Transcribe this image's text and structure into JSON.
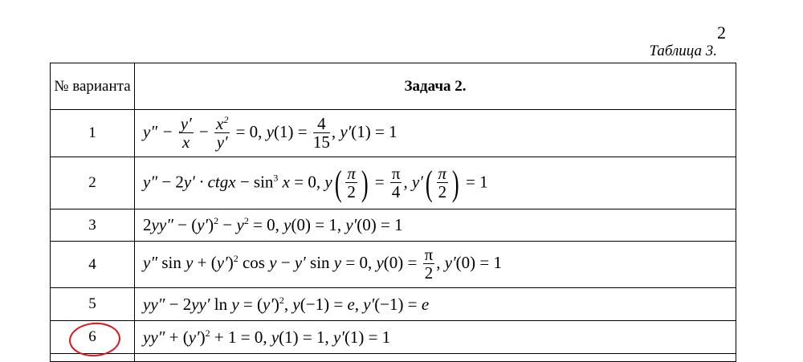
{
  "page_number": "2",
  "table_caption": "Таблица 3.",
  "header": {
    "col1": "№ варианта",
    "col2": "Задача 2."
  },
  "highlight_color": "#e0161c",
  "highlighted_variant": "6",
  "rows": [
    {
      "n": "1",
      "f": [
        {
          "k": "i",
          "v": "y″ − "
        },
        {
          "k": "frac",
          "n": "y′",
          "d": "x",
          "it": true
        },
        {
          "k": "r",
          "v": " − "
        },
        {
          "k": "fracsup",
          "n": "x",
          "s": "2",
          "d": "y′"
        },
        {
          "k": "r",
          "v": " = 0,  "
        },
        {
          "k": "i",
          "v": "y"
        },
        {
          "k": "r",
          "v": "(1) = "
        },
        {
          "k": "frac",
          "n": "4",
          "d": "15"
        },
        {
          "k": "r",
          "v": ",  "
        },
        {
          "k": "i",
          "v": "y′"
        },
        {
          "k": "r",
          "v": "(1) = 1"
        }
      ]
    },
    {
      "n": "2",
      "f": [
        {
          "k": "i",
          "v": "y″"
        },
        {
          "k": "r",
          "v": " − 2"
        },
        {
          "k": "i",
          "v": "y′ · ctgx"
        },
        {
          "k": "r",
          "v": " − sin"
        },
        {
          "k": "sup",
          "v": "3"
        },
        {
          "k": "i",
          "v": " x"
        },
        {
          "k": "r",
          "v": " = 0,  "
        },
        {
          "k": "i",
          "v": "y"
        },
        {
          "k": "pfrac",
          "n": "π",
          "d": "2"
        },
        {
          "k": "r",
          "v": " = "
        },
        {
          "k": "frac",
          "n": "π",
          "d": "4"
        },
        {
          "k": "r",
          "v": ",  "
        },
        {
          "k": "i",
          "v": "y′"
        },
        {
          "k": "pfrac",
          "n": "π",
          "d": "2"
        },
        {
          "k": "r",
          "v": " = 1"
        }
      ]
    },
    {
      "n": "3",
      "f": [
        {
          "k": "r",
          "v": "2"
        },
        {
          "k": "i",
          "v": "yy″"
        },
        {
          "k": "r",
          "v": " − ("
        },
        {
          "k": "i",
          "v": "y′"
        },
        {
          "k": "r",
          "v": ")"
        },
        {
          "k": "sup",
          "v": "2"
        },
        {
          "k": "r",
          "v": " − "
        },
        {
          "k": "i",
          "v": "y"
        },
        {
          "k": "sup",
          "v": "2"
        },
        {
          "k": "r",
          "v": " = 0,  "
        },
        {
          "k": "i",
          "v": "y"
        },
        {
          "k": "r",
          "v": "(0) = 1,  "
        },
        {
          "k": "i",
          "v": "y′"
        },
        {
          "k": "r",
          "v": "(0) = 1"
        }
      ]
    },
    {
      "n": "4",
      "f": [
        {
          "k": "i",
          "v": "y″"
        },
        {
          "k": "r",
          "v": " sin "
        },
        {
          "k": "i",
          "v": "y"
        },
        {
          "k": "r",
          "v": " + ("
        },
        {
          "k": "i",
          "v": "y′"
        },
        {
          "k": "r",
          "v": ")"
        },
        {
          "k": "sup",
          "v": "2"
        },
        {
          "k": "r",
          "v": " cos "
        },
        {
          "k": "i",
          "v": "y"
        },
        {
          "k": "r",
          "v": " − "
        },
        {
          "k": "i",
          "v": "y′"
        },
        {
          "k": "r",
          "v": " sin "
        },
        {
          "k": "i",
          "v": "y"
        },
        {
          "k": "r",
          "v": " = 0,  "
        },
        {
          "k": "i",
          "v": "y"
        },
        {
          "k": "r",
          "v": "(0) = "
        },
        {
          "k": "frac",
          "n": "π",
          "d": "2"
        },
        {
          "k": "r",
          "v": ",  "
        },
        {
          "k": "i",
          "v": "y′"
        },
        {
          "k": "r",
          "v": "(0) = 1"
        }
      ]
    },
    {
      "n": "5",
      "f": [
        {
          "k": "i",
          "v": "yy″"
        },
        {
          "k": "r",
          "v": " − 2"
        },
        {
          "k": "i",
          "v": "yy′"
        },
        {
          "k": "r",
          "v": " ln "
        },
        {
          "k": "i",
          "v": "y"
        },
        {
          "k": "r",
          "v": " = ("
        },
        {
          "k": "i",
          "v": "y′"
        },
        {
          "k": "r",
          "v": ")"
        },
        {
          "k": "sup",
          "v": "2"
        },
        {
          "k": "r",
          "v": ",  "
        },
        {
          "k": "i",
          "v": "y"
        },
        {
          "k": "r",
          "v": "(−1) = "
        },
        {
          "k": "i",
          "v": "e"
        },
        {
          "k": "r",
          "v": ",  "
        },
        {
          "k": "i",
          "v": "y′"
        },
        {
          "k": "r",
          "v": "(−1) = "
        },
        {
          "k": "i",
          "v": "e"
        }
      ]
    },
    {
      "n": "6",
      "f": [
        {
          "k": "i",
          "v": "yy″"
        },
        {
          "k": "r",
          "v": " + ("
        },
        {
          "k": "i",
          "v": "y′"
        },
        {
          "k": "r",
          "v": ")"
        },
        {
          "k": "sup",
          "v": "2"
        },
        {
          "k": "r",
          "v": " + 1 = 0,  "
        },
        {
          "k": "i",
          "v": "y"
        },
        {
          "k": "r",
          "v": "(1) = 1,  "
        },
        {
          "k": "i",
          "v": "y′"
        },
        {
          "k": "r",
          "v": "(1) = 1"
        }
      ]
    }
  ]
}
